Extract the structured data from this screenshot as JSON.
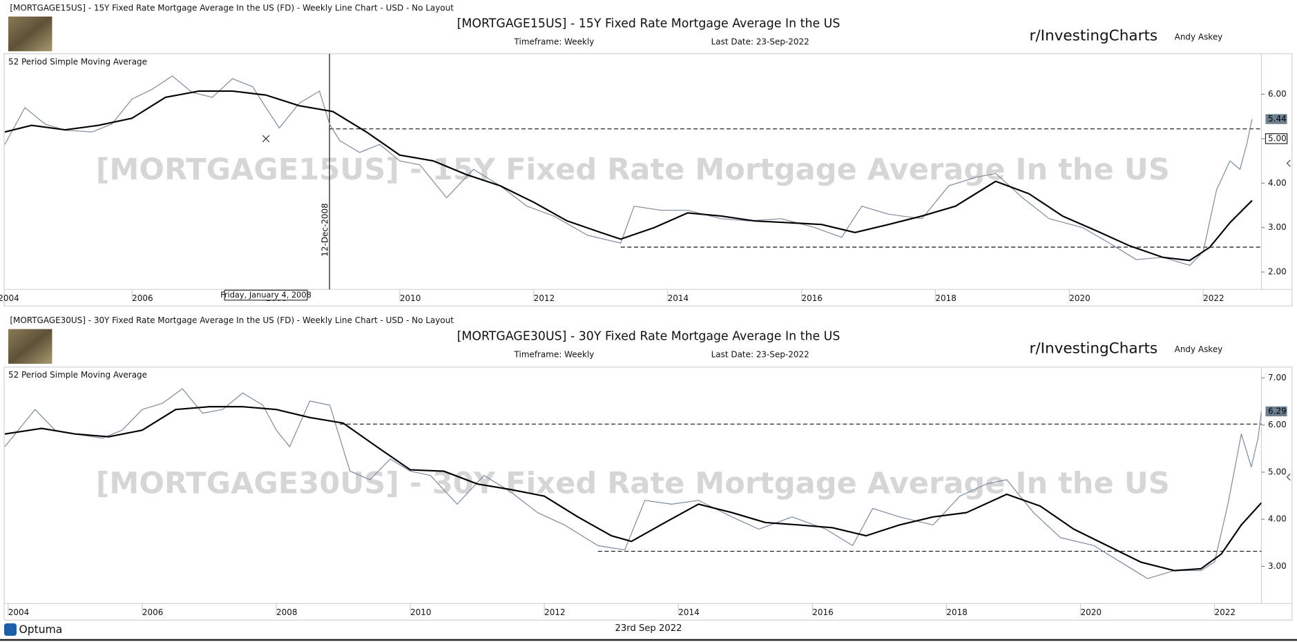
{
  "chart_data": [
    {
      "type": "line",
      "header": "[MORTGAGE15US] - 15Y Fixed Rate Mortgage Average In the US (FD) - Weekly Line Chart - USD - No Layout",
      "title": "[MORTGAGE15US] - 15Y Fixed Rate Mortgage Average In the US",
      "timeframe": "Timeframe: Weekly",
      "last_date": "Last Date: 23-Sep-2022",
      "brand": "r/InvestingCharts",
      "author": "Andy Askey",
      "indicator_label": "52 Period Simple Moving Average",
      "xlim": [
        2004.09,
        2022.87
      ],
      "xticks": [
        2004,
        2006,
        2008,
        2010,
        2012,
        2014,
        2016,
        2018,
        2020,
        2022
      ],
      "ylim": [
        1.61,
        6.91
      ],
      "yticks": [
        {
          "value": 2,
          "label": "2.00"
        },
        {
          "value": 3,
          "label": "3.00"
        },
        {
          "value": 4,
          "label": "4.00"
        },
        {
          "value": 5,
          "label": "5.00"
        },
        {
          "value": 6,
          "label": "6.00"
        }
      ],
      "series": [
        {
          "color": "#7b8a9b",
          "x": [
            2004.1,
            2004.4,
            2004.7,
            2005.0,
            2005.4,
            2005.7,
            2006.0,
            2006.3,
            2006.6,
            2006.9,
            2007.2,
            2007.5,
            2007.8,
            2008.0,
            2008.2,
            2008.5,
            2008.8,
            2008.95,
            2009.1,
            2009.4,
            2009.7,
            2010.0,
            2010.3,
            2010.7,
            2011.1,
            2011.5,
            2011.9,
            2012.3,
            2012.8,
            2013.3,
            2013.5,
            2013.9,
            2014.3,
            2014.8,
            2015.2,
            2015.7,
            2016.2,
            2016.6,
            2016.9,
            2017.3,
            2017.8,
            2018.2,
            2018.6,
            2018.9,
            2019.3,
            2019.7,
            2020.2,
            2020.6,
            2021.0,
            2021.4,
            2021.8,
            2022.0,
            2022.2,
            2022.4,
            2022.55,
            2022.65,
            2022.73
          ],
          "values": [
            4.87,
            5.7,
            5.33,
            5.19,
            5.15,
            5.33,
            5.89,
            6.11,
            6.41,
            6.04,
            5.93,
            6.35,
            6.17,
            5.7,
            5.24,
            5.8,
            6.07,
            5.33,
            4.96,
            4.69,
            4.87,
            4.5,
            4.41,
            3.67,
            4.31,
            3.94,
            3.48,
            3.26,
            2.83,
            2.65,
            3.48,
            3.39,
            3.39,
            3.2,
            3.15,
            3.2,
            3.0,
            2.78,
            3.48,
            3.3,
            3.2,
            3.94,
            4.13,
            4.22,
            3.67,
            3.2,
            3.0,
            2.65,
            2.28,
            2.33,
            2.15,
            2.46,
            3.85,
            4.5,
            4.31,
            4.87,
            5.44
          ]
        },
        {
          "name": "52 Period Simple Moving Average",
          "color": "#000000",
          "x": [
            2004.1,
            2004.5,
            2005.0,
            2005.5,
            2006.0,
            2006.5,
            2007.0,
            2007.5,
            2008.0,
            2008.5,
            2009.0,
            2009.5,
            2010.0,
            2010.5,
            2011.0,
            2011.5,
            2012.0,
            2012.5,
            2013.0,
            2013.3,
            2013.8,
            2014.3,
            2014.8,
            2015.3,
            2015.8,
            2016.3,
            2016.8,
            2017.3,
            2017.8,
            2018.3,
            2018.9,
            2019.4,
            2019.9,
            2020.4,
            2020.9,
            2021.4,
            2021.8,
            2022.1,
            2022.4,
            2022.73
          ],
          "values": [
            5.15,
            5.3,
            5.2,
            5.3,
            5.46,
            5.93,
            6.07,
            6.07,
            5.98,
            5.74,
            5.61,
            5.15,
            4.63,
            4.5,
            4.19,
            3.94,
            3.57,
            3.15,
            2.89,
            2.74,
            3.0,
            3.33,
            3.26,
            3.15,
            3.11,
            3.07,
            2.89,
            3.07,
            3.26,
            3.48,
            4.04,
            3.76,
            3.26,
            2.93,
            2.59,
            2.33,
            2.26,
            2.56,
            3.11,
            3.61
          ]
        }
      ],
      "hlines": [
        {
          "y": 5.22,
          "x_start": 2008.95
        },
        {
          "y": 2.56,
          "x_start": 2013.3
        }
      ],
      "vline": {
        "value": 2008.95,
        "label": "12-Dec-2008"
      },
      "cursor": {
        "x": {
          "value": 2008.0,
          "label": "Friday, January 4, 2008"
        },
        "y": {
          "value": 5,
          "label": "5.00"
        }
      }
    },
    {
      "type": "line",
      "header": "[MORTGAGE30US] - 30Y Fixed Rate Mortgage Average In the US (FD) - Weekly Line Chart - USD - No Layout",
      "title": "[MORTGAGE30US] - 30Y Fixed Rate Mortgage Average In the US",
      "timeframe": "Timeframe: Weekly",
      "last_date": "Last Date: 23-Sep-2022",
      "brand": "r/InvestingCharts",
      "author": "Andy Askey",
      "indicator_label": "52 Period Simple Moving Average",
      "xlim": [
        2003.94,
        2022.7
      ],
      "xticks": [
        2004,
        2006,
        2008,
        2010,
        2012,
        2014,
        2016,
        2018,
        2020,
        2022
      ],
      "ylim": [
        2.21,
        7.23
      ],
      "yticks": [
        {
          "value": 3,
          "label": "3.00"
        },
        {
          "value": 4,
          "label": "4.00"
        },
        {
          "value": 5,
          "label": "5.00"
        },
        {
          "value": 6,
          "label": "6.00"
        },
        {
          "value": 7,
          "label": "7.00"
        }
      ],
      "series": [
        {
          "color": "#7b8a9b",
          "x": [
            2003.95,
            2004.4,
            2004.7,
            2005.0,
            2005.4,
            2005.7,
            2006.0,
            2006.3,
            2006.6,
            2006.9,
            2007.2,
            2007.5,
            2007.8,
            2008.0,
            2008.2,
            2008.5,
            2008.8,
            2008.95,
            2009.1,
            2009.4,
            2009.7,
            2010.0,
            2010.3,
            2010.7,
            2011.1,
            2011.5,
            2011.9,
            2012.3,
            2012.8,
            2013.2,
            2013.5,
            2013.9,
            2014.3,
            2014.8,
            2015.2,
            2015.7,
            2016.2,
            2016.6,
            2016.9,
            2017.3,
            2017.8,
            2018.2,
            2018.6,
            2018.9,
            2019.3,
            2019.7,
            2020.2,
            2020.6,
            2021.0,
            2021.4,
            2021.8,
            2022.0,
            2022.2,
            2022.4,
            2022.55,
            2022.65,
            2022.7
          ],
          "values": [
            5.54,
            6.33,
            5.89,
            5.81,
            5.72,
            5.89,
            6.33,
            6.46,
            6.77,
            6.25,
            6.33,
            6.68,
            6.42,
            5.89,
            5.54,
            6.51,
            6.42,
            5.72,
            5.02,
            4.84,
            5.28,
            5.02,
            4.93,
            4.32,
            4.93,
            4.58,
            4.14,
            3.88,
            3.44,
            3.35,
            4.4,
            4.32,
            4.4,
            4.05,
            3.79,
            4.05,
            3.79,
            3.44,
            4.23,
            4.05,
            3.88,
            4.49,
            4.75,
            4.84,
            4.14,
            3.61,
            3.44,
            3.09,
            2.74,
            2.91,
            2.91,
            3.09,
            4.32,
            5.81,
            5.11,
            5.72,
            6.29
          ]
        },
        {
          "name": "52 Period Simple Moving Average",
          "color": "#000000",
          "x": [
            2003.95,
            2004.5,
            2005.0,
            2005.5,
            2006.0,
            2006.5,
            2007.0,
            2007.5,
            2008.0,
            2008.5,
            2009.0,
            2009.5,
            2010.0,
            2010.5,
            2011.0,
            2011.5,
            2012.0,
            2012.5,
            2013.0,
            2013.3,
            2013.8,
            2014.3,
            2014.8,
            2015.3,
            2015.8,
            2016.3,
            2016.8,
            2017.3,
            2017.8,
            2018.3,
            2018.9,
            2019.4,
            2019.9,
            2020.4,
            2020.9,
            2021.4,
            2021.8,
            2022.1,
            2022.4,
            2022.7
          ],
          "values": [
            5.81,
            5.93,
            5.81,
            5.75,
            5.89,
            6.33,
            6.39,
            6.39,
            6.33,
            6.16,
            6.04,
            5.54,
            5.05,
            5.02,
            4.75,
            4.63,
            4.49,
            4.05,
            3.65,
            3.53,
            3.93,
            4.32,
            4.14,
            3.93,
            3.88,
            3.82,
            3.65,
            3.88,
            4.05,
            4.14,
            4.53,
            4.28,
            3.79,
            3.44,
            3.09,
            2.91,
            2.95,
            3.26,
            3.88,
            4.35
          ]
        }
      ],
      "hlines": [
        {
          "y": 6.02,
          "x_start": 2008.95
        },
        {
          "y": 3.32,
          "x_start": 2012.8
        }
      ]
    }
  ],
  "footer": {
    "logo": "Optuma",
    "date": "23rd Sep 2022"
  }
}
